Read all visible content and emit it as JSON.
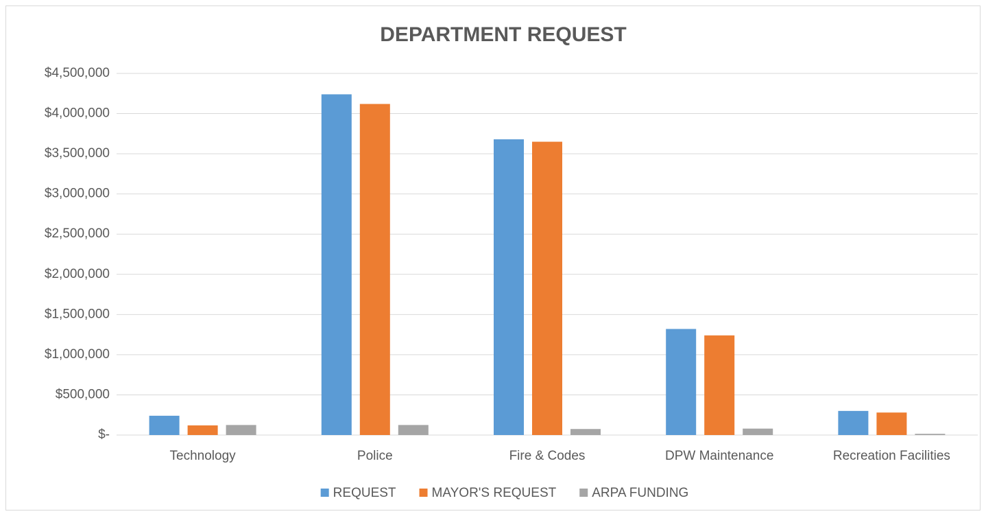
{
  "chart_data": {
    "type": "bar",
    "title": "DEPARTMENT REQUEST",
    "categories": [
      "Technology",
      "Police",
      "Fire & Codes",
      "DPW Maintenance",
      "Recreation Facilities"
    ],
    "series": [
      {
        "name": "REQUEST",
        "color": "#5b9bd5",
        "values": [
          240000,
          4240000,
          3680000,
          1320000,
          300000
        ]
      },
      {
        "name": "MAYOR'S REQUEST",
        "color": "#ed7d31",
        "values": [
          120000,
          4120000,
          3650000,
          1240000,
          280000
        ]
      },
      {
        "name": "ARPA FUNDING",
        "color": "#a5a5a5",
        "values": [
          125000,
          125000,
          75000,
          80000,
          15000
        ]
      }
    ],
    "ylim": [
      0,
      4500000
    ],
    "yticks": [
      {
        "value": 0,
        "label": "$-"
      },
      {
        "value": 500000,
        "label": "$500,000"
      },
      {
        "value": 1000000,
        "label": "$1,000,000"
      },
      {
        "value": 1500000,
        "label": "$1,500,000"
      },
      {
        "value": 2000000,
        "label": "$2,000,000"
      },
      {
        "value": 2500000,
        "label": "$2,500,000"
      },
      {
        "value": 3000000,
        "label": "$3,000,000"
      },
      {
        "value": 3500000,
        "label": "$3,500,000"
      },
      {
        "value": 4000000,
        "label": "$4,000,000"
      },
      {
        "value": 4500000,
        "label": "$4,500,000"
      }
    ],
    "grid": true,
    "legend": "bottom"
  }
}
